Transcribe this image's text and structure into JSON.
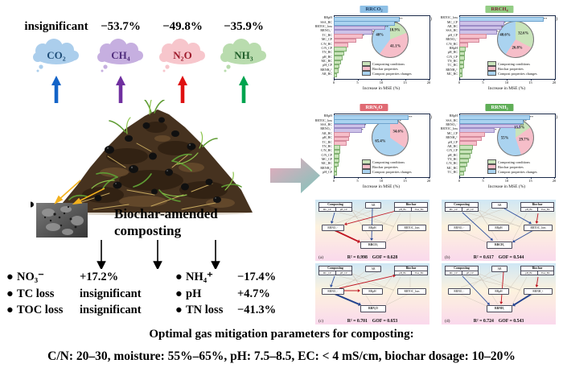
{
  "legend": [
    "Composting conditions",
    "Biochar properties",
    "Compost properties changes"
  ],
  "category_colors": {
    "green": {
      "fill": "#c9e4ba",
      "edge": "#82b173"
    },
    "pink": {
      "fill": "#f6bec9",
      "edge": "#d68b9d"
    },
    "blue": {
      "fill": "#aad3f0",
      "edge": "#6fa3cd"
    },
    "lavender": {
      "fill": "#cdc2e8",
      "edge": "#9c8dc6"
    }
  },
  "emissions": {
    "items": [
      {
        "change": "insignificant",
        "formula": "CO₂",
        "cloud_color": "#abceec",
        "text_color": "#1f4e79",
        "arrow_color": "#1464c8"
      },
      {
        "change": "−53.7%",
        "formula": "CH₄",
        "cloud_color": "#c6afe0",
        "text_color": "#512e7e",
        "arrow_color": "#7030a0"
      },
      {
        "change": "−49.8%",
        "formula": "N₂O",
        "cloud_color": "#f7c6cc",
        "text_color": "#9e1b2c",
        "arrow_color": "#df1111"
      },
      {
        "change": "−35.9%",
        "formula": "NH₃",
        "cloud_color": "#b9dcae",
        "text_color": "#205f2a",
        "arrow_color": "#00a44f"
      }
    ]
  },
  "pile": {
    "caption_line1": "Biochar-amended",
    "caption_line2": "composting"
  },
  "outcomes": {
    "left": [
      {
        "label": "NO₃⁻",
        "value": "+17.2%"
      },
      {
        "label": "TC loss",
        "value": "insignificant"
      },
      {
        "label": "TOC loss",
        "value": "insignificant"
      }
    ],
    "right": [
      {
        "label": "NH₄⁺",
        "value": "−17.4%"
      },
      {
        "label": "pH",
        "value": "+4.7%"
      },
      {
        "label": "TN loss",
        "value": "−41.3%"
      }
    ]
  },
  "footer": {
    "line1": "Optimal gas mitigation parameters for composting:",
    "line2": "C/N: 20–30, moisture: 55%–65%, pH: 7.5–8.5, EC: < 4 mS/cm, biochar dosage: 10–20%"
  },
  "chart_data": [
    {
      "type": "bar",
      "panel": "(a)",
      "title": "RRCO₂",
      "title_bg": "#8ec0e6",
      "title_color": "#17365d",
      "xlabel": "Increase in MSE (%)",
      "xlim": [
        0,
        20
      ],
      "xticks": [
        0,
        5,
        10,
        15,
        20
      ],
      "bars": [
        {
          "label": "RRpH",
          "value": 13.5,
          "color": "blue",
          "sig": "**"
        },
        {
          "label": "SSA_BC",
          "value": 12.5,
          "color": "blue",
          "sig": "**"
        },
        {
          "label": "RRTOC_loss",
          "value": 10.5,
          "color": "lavender",
          "sig": "**"
        },
        {
          "label": "RRNO₃⁻",
          "value": 7.8,
          "color": "lavender",
          "sig": "*"
        },
        {
          "label": "TC_BC",
          "value": 5.8,
          "color": "pink",
          "sig": "*"
        },
        {
          "label": "MC_CP",
          "value": 4.4,
          "color": "pink",
          "sig": ""
        },
        {
          "label": "C/N_BC",
          "value": 2.7,
          "color": "pink",
          "sig": ""
        },
        {
          "label": "C/N_CP",
          "value": 2.3,
          "color": "green",
          "sig": ""
        },
        {
          "label": "TN_BC",
          "value": 1.8,
          "color": "green",
          "sig": ""
        },
        {
          "label": "pH_BC",
          "value": 1.5,
          "color": "green",
          "sig": ""
        },
        {
          "label": "MC_BC",
          "value": 1.2,
          "color": "green",
          "sig": ""
        },
        {
          "label": "pH_CP",
          "value": 0.9,
          "color": "green",
          "sig": ""
        },
        {
          "label": "RRNH₄⁺",
          "value": 0.6,
          "color": "green",
          "sig": ""
        },
        {
          "label": "AR_BC",
          "value": 0.4,
          "color": "green",
          "sig": ""
        }
      ],
      "pie": [
        {
          "label": "18.9%",
          "pct": 18.9,
          "color": "green"
        },
        {
          "label": "41.1%",
          "pct": 41.1,
          "color": "pink"
        },
        {
          "label": "40%",
          "pct": 40.0,
          "color": "blue"
        }
      ]
    },
    {
      "type": "bar",
      "panel": "(b)",
      "title": "RRCH₄",
      "title_bg": "#93cd85",
      "title_color": "#7b1f2e",
      "xlabel": "Increase in MSE (%)",
      "xlim": [
        0,
        20
      ],
      "xticks": [
        0,
        5,
        10,
        15,
        20
      ],
      "bars": [
        {
          "label": "RRTOC_loss",
          "value": 17.5,
          "color": "blue",
          "sig": "**"
        },
        {
          "label": "MC_CP",
          "value": 9.2,
          "color": "lavender",
          "sig": "*"
        },
        {
          "label": "AR_BC",
          "value": 8.6,
          "color": "lavender",
          "sig": "*"
        },
        {
          "label": "SSA_BC",
          "value": 7.6,
          "color": "lavender",
          "sig": "*"
        },
        {
          "label": "pH_CP",
          "value": 5.4,
          "color": "pink",
          "sig": ""
        },
        {
          "label": "RRNO₃⁻",
          "value": 3.9,
          "color": "pink",
          "sig": ""
        },
        {
          "label": "C/N_BC",
          "value": 1.6,
          "color": "pink",
          "sig": ""
        },
        {
          "label": "RRpH",
          "value": 1.0,
          "color": "green",
          "sig": ""
        },
        {
          "label": "pH_BC",
          "value": 0.9,
          "color": "green",
          "sig": ""
        },
        {
          "label": "C/N_CP",
          "value": 0.8,
          "color": "green",
          "sig": ""
        },
        {
          "label": "TN_BC",
          "value": 0.7,
          "color": "green",
          "sig": ""
        },
        {
          "label": "TC_BC",
          "value": 0.6,
          "color": "green",
          "sig": ""
        },
        {
          "label": "RRNH₄⁺",
          "value": 0.4,
          "color": "green",
          "sig": ""
        },
        {
          "label": "MC_BC",
          "value": 0.3,
          "color": "green",
          "sig": ""
        }
      ],
      "pie": [
        {
          "label": "32.6%",
          "pct": 32.6,
          "color": "green"
        },
        {
          "label": "26.8%",
          "pct": 26.8,
          "color": "pink"
        },
        {
          "label": "40.6%",
          "pct": 40.6,
          "color": "blue"
        }
      ]
    },
    {
      "type": "bar",
      "panel": "(c)",
      "title": "RRN₂O",
      "title_bg": "#e06a73",
      "title_color": "#ffffff",
      "xlabel": "Increase in MSE (%)",
      "xlim": [
        0,
        20
      ],
      "xticks": [
        0,
        5,
        10,
        15,
        20
      ],
      "bars": [
        {
          "label": "RRpH",
          "value": 15.5,
          "color": "blue",
          "sig": "**"
        },
        {
          "label": "RRTOC_loss",
          "value": 13.2,
          "color": "blue",
          "sig": "**"
        },
        {
          "label": "SSA_BC",
          "value": 6.2,
          "color": "lavender",
          "sig": "*"
        },
        {
          "label": "RRNO₃⁻",
          "value": 5.6,
          "color": "lavender",
          "sig": "*"
        },
        {
          "label": "AR_BC",
          "value": 3.1,
          "color": "pink",
          "sig": ""
        },
        {
          "label": "pH_BC",
          "value": 2.8,
          "color": "pink",
          "sig": ""
        },
        {
          "label": "TC_BC",
          "value": 2.4,
          "color": "pink",
          "sig": ""
        },
        {
          "label": "TN_BC",
          "value": 1.1,
          "color": "green",
          "sig": ""
        },
        {
          "label": "C/N_BC",
          "value": 1.0,
          "color": "green",
          "sig": ""
        },
        {
          "label": "C/N_CP",
          "value": 0.9,
          "color": "green",
          "sig": ""
        },
        {
          "label": "MC_CP",
          "value": 0.8,
          "color": "green",
          "sig": ""
        },
        {
          "label": "MC_BC",
          "value": 0.6,
          "color": "green",
          "sig": ""
        },
        {
          "label": "RRNH₄⁺",
          "value": 0.4,
          "color": "green",
          "sig": ""
        },
        {
          "label": "pH_CP",
          "value": 0.3,
          "color": "green",
          "sig": ""
        }
      ],
      "pie": [
        {
          "label": "34.6%",
          "pct": 34.6,
          "color": "pink"
        },
        {
          "label": "65.4%",
          "pct": 65.4,
          "color": "blue"
        }
      ]
    },
    {
      "type": "bar",
      "panel": "(d)",
      "title": "RRNH₃",
      "title_bg": "#5fae57",
      "title_color": "#ffffff",
      "xlabel": "Increase in MSE (%)",
      "xlim": [
        0,
        20
      ],
      "xticks": [
        0,
        5,
        10,
        15,
        20
      ],
      "bars": [
        {
          "label": "RRpH",
          "value": 14.6,
          "color": "blue",
          "sig": "**"
        },
        {
          "label": "SSA_BC",
          "value": 13.2,
          "color": "blue",
          "sig": "**"
        },
        {
          "label": "RRNO₃⁻",
          "value": 12.6,
          "color": "lavender",
          "sig": "**"
        },
        {
          "label": "RRTOC_loss",
          "value": 7.2,
          "color": "lavender",
          "sig": "*"
        },
        {
          "label": "MC_CP",
          "value": 5.0,
          "color": "pink",
          "sig": ""
        },
        {
          "label": "RRNH₄⁺",
          "value": 4.4,
          "color": "pink",
          "sig": ""
        },
        {
          "label": "pH_CP",
          "value": 3.4,
          "color": "pink",
          "sig": ""
        },
        {
          "label": "AR_BC",
          "value": 2.6,
          "color": "green",
          "sig": ""
        },
        {
          "label": "C/N_CP",
          "value": 2.3,
          "color": "green",
          "sig": ""
        },
        {
          "label": "pH_BC",
          "value": 2.0,
          "color": "green",
          "sig": ""
        },
        {
          "label": "TN_BC",
          "value": 1.7,
          "color": "green",
          "sig": ""
        },
        {
          "label": "C/N_BC",
          "value": 1.4,
          "color": "green",
          "sig": ""
        },
        {
          "label": "MC_BC",
          "value": 1.0,
          "color": "green",
          "sig": ""
        },
        {
          "label": "TC_BC",
          "value": 0.6,
          "color": "green",
          "sig": ""
        }
      ],
      "pie": [
        {
          "label": "15.3%",
          "pct": 15.3,
          "color": "green"
        },
        {
          "label": "29.7%",
          "pct": 29.7,
          "color": "pink"
        },
        {
          "label": "55%",
          "pct": 55.0,
          "color": "blue"
        }
      ]
    }
  ],
  "sem_data": [
    {
      "panel": "(a)",
      "r2": "R² = 0.998",
      "gof": "GOF = 0.628",
      "boxes": {
        "composting": "Composting",
        "ar": "AR",
        "biochar": "Biochar",
        "c_cells": [
          "MC_CP",
          "pH_CP"
        ],
        "b_cells": [
          "pH_BC",
          "SSA_BC"
        ],
        "mid_left": "RRNO₃⁻",
        "mid_center": "RRpH",
        "mid_right": "RRTOC_loss",
        "target": "RRCO₂"
      }
    },
    {
      "panel": "(b)",
      "r2": "R² = 0.617",
      "gof": "GOF = 0.544",
      "boxes": {
        "composting": "Composting",
        "ar": "AR",
        "biochar": "Biochar",
        "c_cells": [
          "MC_CP",
          "pH_CP"
        ],
        "b_cells": [
          "pH_BC",
          "SSA_BC"
        ],
        "mid_left": "RRNO₃⁻",
        "mid_center": "RRpH",
        "mid_right": "RRTOC_loss",
        "target": "RRCH₄"
      }
    },
    {
      "panel": "(c)",
      "r2": "R² = 0.701",
      "gof": "GOF = 0.653",
      "boxes": {
        "composting": "Composting",
        "ar": "AR",
        "biochar": "Biochar",
        "c_cells": [
          "MC_CP",
          "pH_CP"
        ],
        "b_cells": [
          "pH_BC",
          "SSA_BC"
        ],
        "mid_left": "RRNO₃⁻",
        "mid_center": "RRpH",
        "mid_right": "RRTOC_loss",
        "target": "RRN₂O"
      }
    },
    {
      "panel": "(d)",
      "r2": "R² = 0.724",
      "gof": "GOF = 0.543",
      "boxes": {
        "composting": "Composting",
        "ar": "AR",
        "biochar": "Biochar",
        "c_cells": [
          "MC_CP",
          "pH_CP"
        ],
        "b_cells": [
          "pH_BC",
          "SSA_BC"
        ],
        "mid_left": "RRNO₃⁻",
        "mid_center": "RRpH",
        "mid_right": "RRNH₄⁺",
        "target": "RRNH₃"
      }
    }
  ]
}
